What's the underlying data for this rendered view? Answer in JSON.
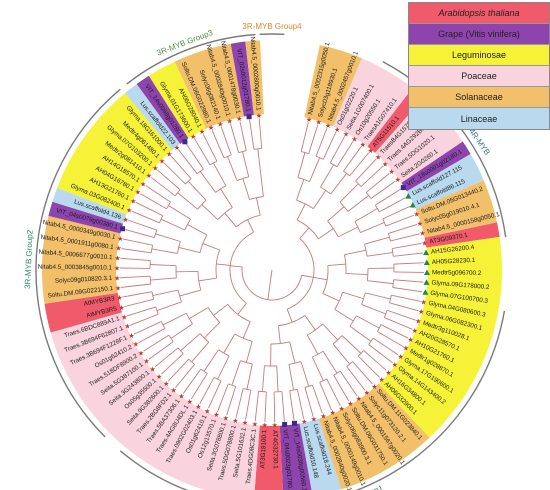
{
  "legend": [
    {
      "label": "Arabidopsis thaliana",
      "color": "#f05a6a",
      "italic": true
    },
    {
      "label": "Grape (Vitis vinifera)",
      "color": "#8e44ad",
      "italic": false
    },
    {
      "label": "Leguminosae",
      "color": "#f6f238",
      "italic": false
    },
    {
      "label": "Poaceae",
      "color": "#f9d4de",
      "italic": false
    },
    {
      "label": "Solanaceae",
      "color": "#f2bf6a",
      "italic": false
    },
    {
      "label": "Linaceae",
      "color": "#b9d9ef",
      "italic": false
    }
  ],
  "colors": {
    "Arabidopsis": "#f05a6a",
    "Grape": "#8e44ad",
    "Leguminosae": "#f6f238",
    "Poaceae": "#f9d4de",
    "Solanaceae": "#f2bf6a",
    "Linaceae": "#b9d9ef",
    "branch": "#c77b7b",
    "groupArc": "#7a7a7a"
  },
  "groups": [
    {
      "label": "3R-MYB Group4",
      "color": "#e08a2a",
      "startAngle": -93,
      "endAngle": -87
    },
    {
      "label": "contain 4R-MYB",
      "color": "#3a6fa0",
      "startAngle": -62,
      "endAngle": -8
    },
    {
      "label": "3R-MYB Group1",
      "color": "#2e7a5a",
      "startAngle": 10,
      "endAngle": 130
    },
    {
      "label": "3R-MYB Group2",
      "color": "#2e8a6a",
      "startAngle": 135,
      "endAngle": 230
    },
    {
      "label": "3R-MYB Group3",
      "color": "#5a8a4a",
      "startAngle": 232,
      "endAngle": 266
    }
  ],
  "leaves": [
    {
      "name": "Nitab4.5_0002315g0050.1",
      "family": "Solanaceae",
      "marker": "star"
    },
    {
      "name": "Solyc03g118930.1",
      "family": "Solanaceae",
      "marker": "star"
    },
    {
      "name": "Nitab4.5_0002457g0010.1",
      "family": "Solanaceae",
      "marker": "star"
    },
    {
      "name": "Os01g02220.1",
      "family": "Poaceae",
      "marker": "star"
    },
    {
      "name": "Seita.1G007400.1",
      "family": "Poaceae",
      "marker": "star"
    },
    {
      "name": "Os10g20550.1",
      "family": "Poaceae",
      "marker": "star"
    },
    {
      "name": "TraesA1G07410.1",
      "family": "Poaceae",
      "marker": "star"
    },
    {
      "name": "AT5G11510.1",
      "family": "Arabidopsis",
      "marker": "star"
    },
    {
      "name": "TraesB4G15760.1",
      "family": "Poaceae",
      "marker": "star"
    },
    {
      "name": "Traes.4AG292B.1",
      "family": "Poaceae",
      "marker": "star"
    },
    {
      "name": "Traes.5DG1020.1",
      "family": "Poaceae",
      "marker": "star"
    },
    {
      "name": "Seita.2G0260.1",
      "family": "Poaceae",
      "marker": "star"
    },
    {
      "name": "VIT_18s0001g02180.1",
      "family": "Grape",
      "marker": "square"
    },
    {
      "name": "Lus.scaffold127.115",
      "family": "Linaceae",
      "marker": "triangle"
    },
    {
      "name": "Lus.scaffold86.115",
      "family": "Linaceae",
      "marker": "triangle"
    },
    {
      "name": "Soltu.DM.05G013440.2",
      "family": "Solanaceae",
      "marker": "star"
    },
    {
      "name": "Solyc05g019010.4.1",
      "family": "Solanaceae",
      "marker": "star"
    },
    {
      "name": "Nitab4.5_0000158g0050.1",
      "family": "Solanaceae",
      "marker": "star"
    },
    {
      "name": "AT3G09370.1",
      "family": "Arabidopsis",
      "marker": "star"
    },
    {
      "name": "AH15G26200.4",
      "family": "Leguminosae",
      "marker": "triangle"
    },
    {
      "name": "AH05G28230.1",
      "family": "Leguminosae",
      "marker": "triangle"
    },
    {
      "name": "Medtr5g096700.2",
      "family": "Leguminosae",
      "marker": "triangle"
    },
    {
      "name": "Glyma.09G178000.2",
      "family": "Leguminosae",
      "marker": "triangle"
    },
    {
      "name": "Glyma.07G100700.3",
      "family": "Leguminosae",
      "marker": "triangle"
    },
    {
      "name": "Glyma.04G080600.3",
      "family": "Leguminosae",
      "marker": "star"
    },
    {
      "name": "Glyma.06G082300.1",
      "family": "Leguminosae",
      "marker": "star"
    },
    {
      "name": "Medtr3g110028.1",
      "family": "Leguminosae",
      "marker": "star"
    },
    {
      "name": "AH20G28570.1",
      "family": "Leguminosae",
      "marker": "star"
    },
    {
      "name": "AH10G21760.1",
      "family": "Leguminosae",
      "marker": "star"
    },
    {
      "name": "Medtr1g028870.1",
      "family": "Leguminosae",
      "marker": "star"
    },
    {
      "name": "Glyma.17G190600.1",
      "family": "Leguminosae",
      "marker": "star"
    },
    {
      "name": "Glyma.14G143400.2",
      "family": "Leguminosae",
      "marker": "star"
    },
    {
      "name": "AH16G34800.1",
      "family": "Leguminosae",
      "marker": "star"
    },
    {
      "name": "AH06G32900.1",
      "family": "Leguminosae",
      "marker": "star"
    },
    {
      "name": "Soltu.DM.11G023840.1",
      "family": "Solanaceae",
      "marker": "star"
    },
    {
      "name": "Solyc11g073120.2.1",
      "family": "Solanaceae",
      "marker": "star"
    },
    {
      "name": "Nitab4.5_0001567g0020.1",
      "family": "Solanaceae",
      "marker": "star"
    },
    {
      "name": "Soltu.DM.06G031750.1",
      "family": "Solanaceae",
      "marker": "star"
    },
    {
      "name": "Solyc06g083900.3.1",
      "family": "Solanaceae",
      "marker": "star"
    },
    {
      "name": "Nitab4.5_0000149g0010.1",
      "family": "Solanaceae",
      "marker": "star"
    },
    {
      "name": "Nitab4.5_0002840g0020.1",
      "family": "Solanaceae",
      "marker": "star"
    },
    {
      "name": "Lus.scaffold18.244",
      "family": "Linaceae",
      "marker": "star"
    },
    {
      "name": "Lus.scaffold10.148",
      "family": "Linaceae",
      "marker": "star"
    },
    {
      "name": "VIT_14s0036g00560.1",
      "family": "Grape",
      "marker": "square"
    },
    {
      "name": "VIT_04s0023g01780.1",
      "family": "Grape",
      "marker": "square"
    },
    {
      "name": "AT4G32730.1",
      "family": "Arabidopsis",
      "marker": "star"
    },
    {
      "name": "AT3G18100.1",
      "family": "Arabidopsis",
      "marker": "star"
    },
    {
      "name": "Traes.4DG08C3C.1",
      "family": "Poaceae",
      "marker": "star"
    },
    {
      "name": "Seita.5G101632.1",
      "family": "Poaceae",
      "marker": "star"
    },
    {
      "name": "Traes.5DG078800.1",
      "family": "Poaceae",
      "marker": "star"
    },
    {
      "name": "Seita.3G078800.1",
      "family": "Poaceae",
      "marker": "star"
    },
    {
      "name": "Os12g13570.1",
      "family": "Poaceae",
      "marker": "star"
    },
    {
      "name": "Os01g62410.1",
      "family": "Poaceae",
      "marker": "star"
    },
    {
      "name": "Traes.0902G02403.1",
      "family": "Poaceae",
      "marker": "star"
    },
    {
      "name": "Traes.4AG8U4DL.1",
      "family": "Poaceae",
      "marker": "star"
    },
    {
      "name": "Traes.5BA37306.1",
      "family": "Poaceae",
      "marker": "star"
    },
    {
      "name": "Traes.2BG8FD2.1",
      "family": "Poaceae",
      "marker": "star"
    },
    {
      "name": "Seita.9G382600.1",
      "family": "Poaceae",
      "marker": "star"
    },
    {
      "name": "Os05g35500.1",
      "family": "Poaceae",
      "marker": "star"
    },
    {
      "name": "Seita.3G243800.1",
      "family": "Poaceae",
      "marker": "star"
    },
    {
      "name": "Seita.5G387100.1",
      "family": "Poaceae",
      "marker": "star"
    },
    {
      "name": "Traes.518DF8900.2",
      "family": "Poaceae",
      "marker": "star"
    },
    {
      "name": "Os01g62410.2",
      "family": "Poaceae",
      "marker": "star"
    },
    {
      "name": "Traes.3B694F1228F.1",
      "family": "Poaceae",
      "marker": "star"
    },
    {
      "name": "Traes.3B694F62807.1",
      "family": "Poaceae",
      "marker": "star"
    },
    {
      "name": "Traes.6BDC889A1.1",
      "family": "Poaceae",
      "marker": "star"
    },
    {
      "name": "AtMYB3R5",
      "family": "Arabidopsis",
      "marker": "star"
    },
    {
      "name": "AtMYB3R3",
      "family": "Arabidopsis",
      "marker": "star"
    },
    {
      "name": "Soltu.DM.09G022150.1",
      "family": "Solanaceae",
      "marker": "star"
    },
    {
      "name": "Solyc09g010820.3.1",
      "family": "Solanaceae",
      "marker": "star"
    },
    {
      "name": "Nitab4.5_0003845g0010.1",
      "family": "Solanaceae",
      "marker": "star"
    },
    {
      "name": "Nitab4.5_0006677g0010.1",
      "family": "Solanaceae",
      "marker": "star"
    },
    {
      "name": "Nitab4.5_0001911g0080.1",
      "family": "Solanaceae",
      "marker": "star"
    },
    {
      "name": "Nitab4.5_0000349g0030.1",
      "family": "Solanaceae",
      "marker": "star"
    },
    {
      "name": "VIT_04s0079g00380.1",
      "family": "Grape",
      "marker": "square"
    },
    {
      "name": "Lus.scaffold4.136",
      "family": "Linaceae",
      "marker": "star"
    },
    {
      "name": "Glyma.03G082400.1",
      "family": "Leguminosae",
      "marker": "star"
    },
    {
      "name": "AH13G21760.1",
      "family": "Leguminosae",
      "marker": "star"
    },
    {
      "name": "AH04G16780.1",
      "family": "Leguminosae",
      "marker": "star"
    },
    {
      "name": "AH14G18570.1",
      "family": "Leguminosae",
      "marker": "star"
    },
    {
      "name": "Medtr2g081410.1",
      "family": "Leguminosae",
      "marker": "star"
    },
    {
      "name": "Glyma.07G103200.1",
      "family": "Leguminosae",
      "marker": "star"
    },
    {
      "name": "Medtr4g061480.1",
      "family": "Leguminosae",
      "marker": "star"
    },
    {
      "name": "Glyma.18G161000.1",
      "family": "Leguminosae",
      "marker": "star"
    },
    {
      "name": "Lus.scaffold22.103",
      "family": "Linaceae",
      "marker": "star"
    },
    {
      "name": "VIT_14s0068g01280.1",
      "family": "Grape",
      "marker": "square"
    },
    {
      "name": "Glyma.01G173600.1",
      "family": "Leguminosae",
      "marker": "star"
    },
    {
      "name": "AH06G28040.1",
      "family": "Leguminosae",
      "marker": "star"
    },
    {
      "name": "Soltu.DM.06G022980.1",
      "family": "Solanaceae",
      "marker": "star"
    },
    {
      "name": "Solyc06g082140.1",
      "family": "Solanaceae",
      "marker": "star"
    },
    {
      "name": "Nitab4.5_0002840g0010.1",
      "family": "Solanaceae",
      "marker": "star"
    },
    {
      "name": "Nitab4.5_0001478g0030.1",
      "family": "Solanaceae",
      "marker": "star"
    },
    {
      "name": "VIT_02s0012g01780.1",
      "family": "Grape",
      "marker": "square"
    },
    {
      "name": "Nitab4.5_0002800g0010.1",
      "family": "Solanaceae",
      "marker": "star"
    }
  ]
}
